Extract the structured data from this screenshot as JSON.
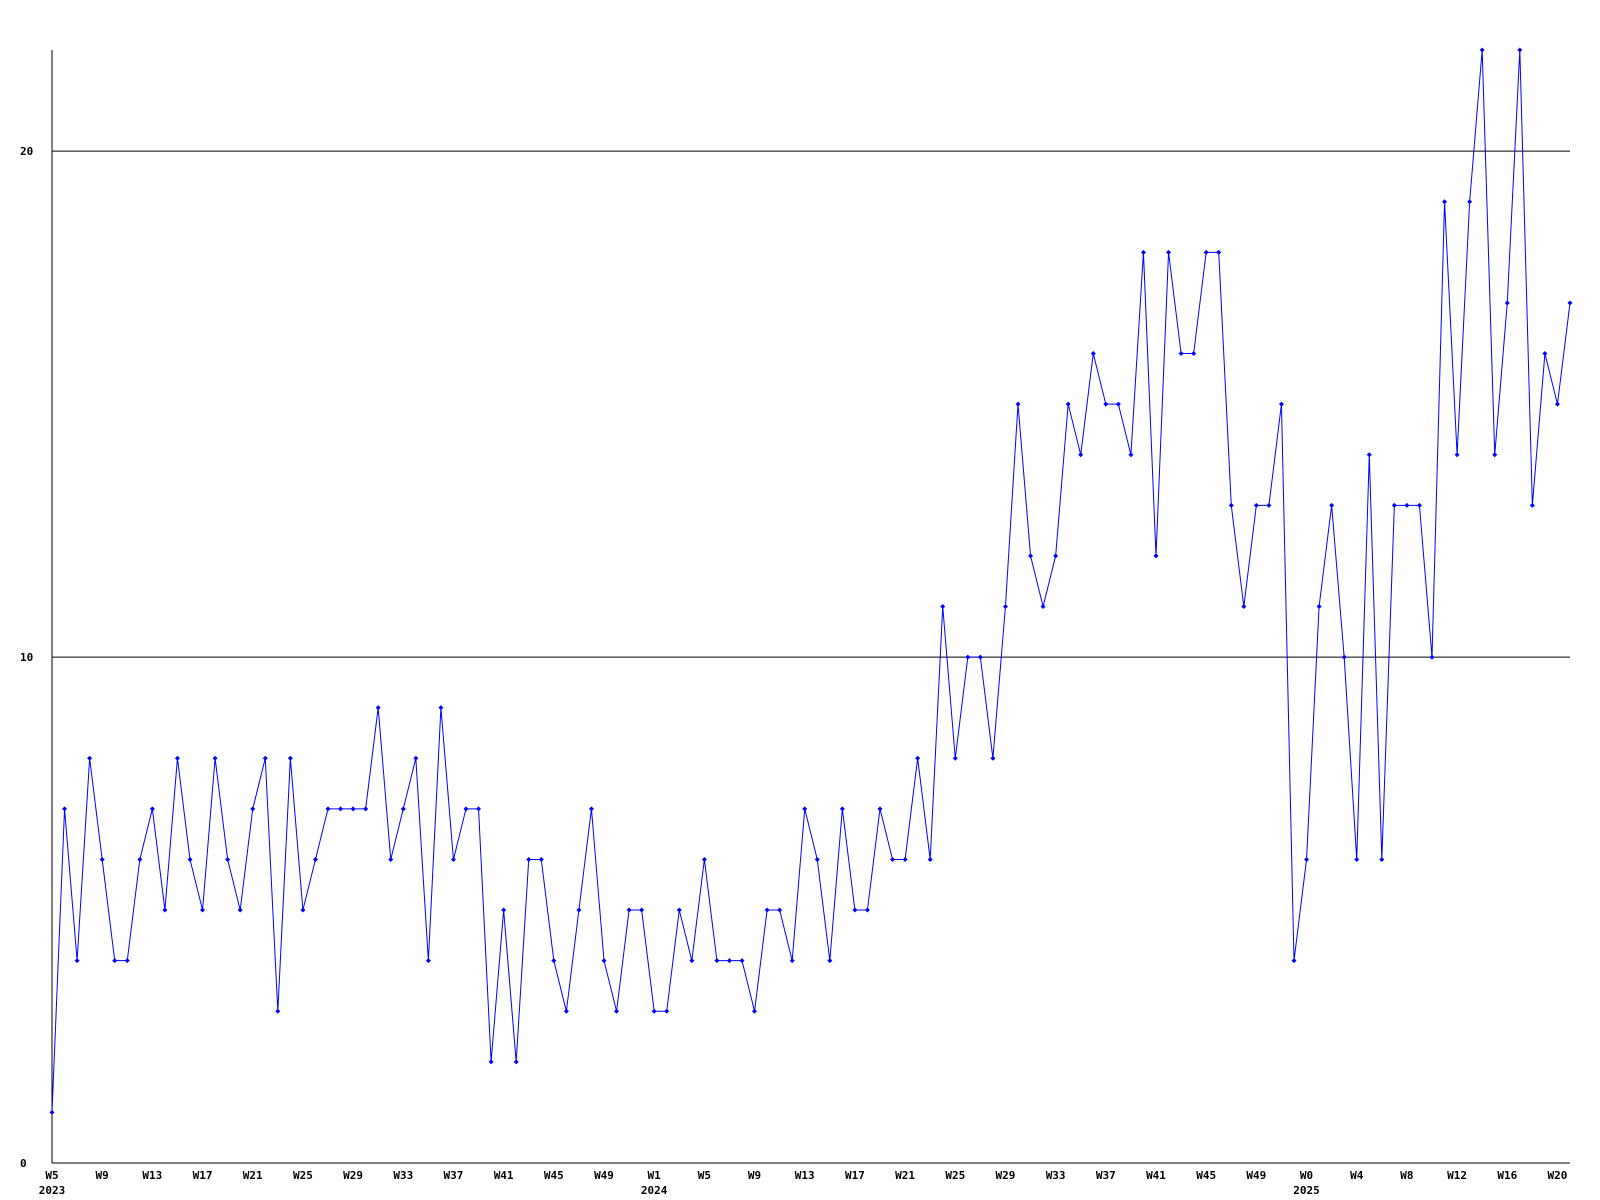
{
  "chart_data": {
    "type": "line",
    "color": "#0000ff",
    "categories": [
      "W5",
      null,
      null,
      null,
      "W9",
      null,
      null,
      null,
      "W13",
      null,
      null,
      null,
      "W17",
      null,
      null,
      null,
      "W21",
      null,
      null,
      null,
      "W25",
      null,
      null,
      null,
      "W29",
      null,
      null,
      null,
      "W33",
      null,
      null,
      null,
      "W37",
      null,
      null,
      null,
      "W41",
      null,
      null,
      null,
      "W45",
      null,
      null,
      null,
      "W49",
      null,
      null,
      null,
      "W1",
      null,
      null,
      null,
      "W5",
      null,
      null,
      null,
      "W9",
      null,
      null,
      null,
      "W13",
      null,
      null,
      null,
      "W17",
      null,
      null,
      null,
      "W21",
      null,
      null,
      null,
      "W25",
      null,
      null,
      null,
      "W29",
      null,
      null,
      null,
      "W33",
      null,
      null,
      null,
      "W37",
      null,
      null,
      null,
      "W41",
      null,
      null,
      null,
      "W45",
      null,
      null,
      null,
      "W49",
      null,
      null,
      null,
      "W0",
      null,
      null,
      null,
      "W4",
      null,
      null,
      null,
      "W8",
      null,
      null,
      null,
      "W12",
      null,
      null,
      null,
      "W16",
      null,
      null,
      null,
      "W20",
      null
    ],
    "category_groups": [
      "2023",
      null,
      null,
      null,
      null,
      null,
      null,
      null,
      null,
      null,
      null,
      null,
      null,
      null,
      null,
      null,
      null,
      null,
      null,
      null,
      null,
      null,
      null,
      null,
      null,
      null,
      null,
      null,
      null,
      null,
      null,
      null,
      null,
      null,
      null,
      null,
      null,
      null,
      null,
      null,
      null,
      null,
      null,
      null,
      null,
      null,
      null,
      null,
      "2024",
      null,
      null,
      null,
      null,
      null,
      null,
      null,
      null,
      null,
      null,
      null,
      null,
      null,
      null,
      null,
      null,
      null,
      null,
      null,
      null,
      null,
      null,
      null,
      null,
      null,
      null,
      null,
      null,
      null,
      null,
      null,
      null,
      null,
      null,
      null,
      null,
      null,
      null,
      null,
      null,
      null,
      null,
      null,
      null,
      null,
      null,
      null,
      null,
      null,
      null,
      null,
      "2025",
      null,
      null,
      null,
      null,
      null,
      null,
      null,
      null,
      null,
      null,
      null,
      null,
      null,
      null,
      null,
      null,
      null,
      null,
      null,
      null,
      null
    ],
    "values": [
      1,
      7,
      4,
      8,
      6,
      4,
      4,
      6,
      7,
      5,
      8,
      6,
      5,
      8,
      6,
      5,
      7,
      8,
      3,
      8,
      5,
      6,
      7,
      7,
      7,
      7,
      9,
      6,
      7,
      8,
      4,
      9,
      6,
      7,
      7,
      2,
      5,
      2,
      6,
      6,
      4,
      3,
      5,
      7,
      4,
      3,
      5,
      5,
      3,
      3,
      5,
      4,
      6,
      4,
      4,
      4,
      3,
      5,
      5,
      4,
      7,
      6,
      4,
      7,
      5,
      5,
      7,
      6,
      6,
      8,
      6,
      11,
      8,
      10,
      10,
      8,
      11,
      15,
      12,
      11,
      12,
      15,
      14,
      16,
      15,
      15,
      14,
      18,
      12,
      18,
      16,
      16,
      18,
      18,
      13,
      11,
      13,
      13,
      15,
      4,
      6,
      11,
      13,
      10,
      6,
      14,
      6,
      13,
      13,
      13,
      10,
      19,
      14,
      19,
      22,
      14,
      17,
      22,
      13,
      16,
      15,
      17
    ],
    "ylim": [
      0,
      22
    ],
    "yticks": [
      0,
      10,
      20
    ],
    "grid": true
  }
}
